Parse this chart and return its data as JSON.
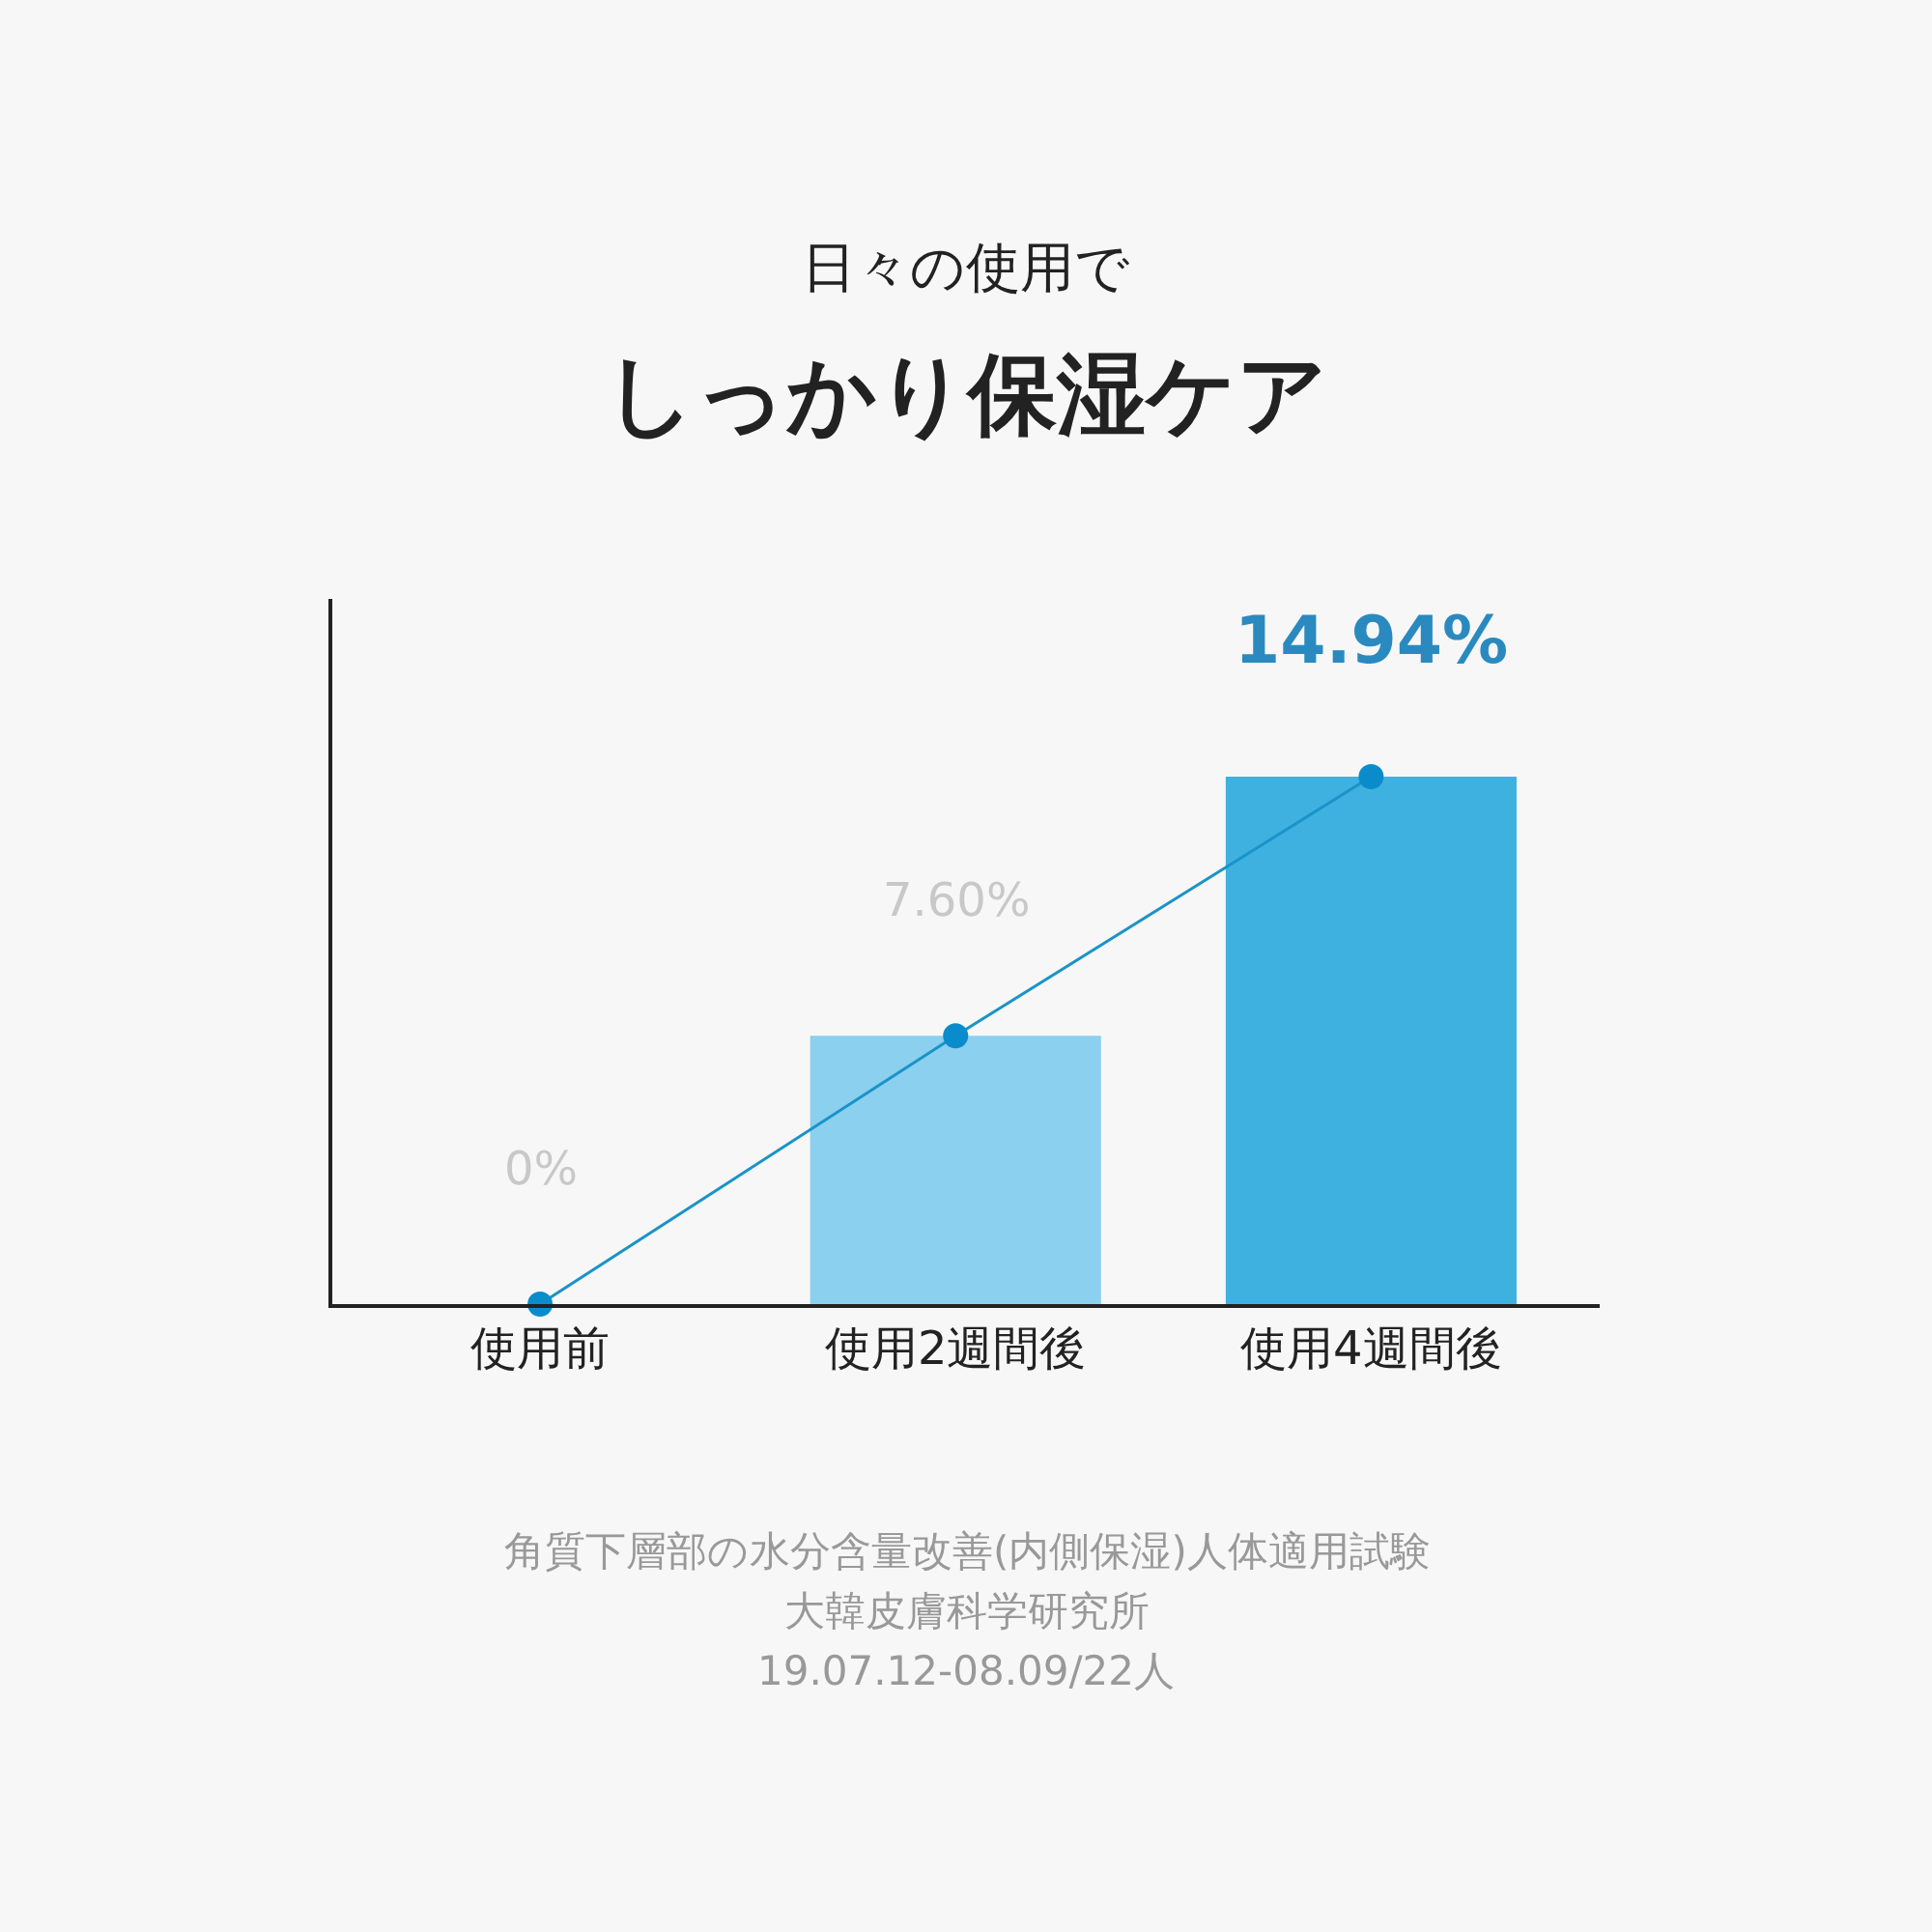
{
  "chart_data": {
    "type": "bar",
    "title": "しっかり保湿ケア",
    "subtitle": "日々の使用で",
    "categories": [
      "使用前",
      "使用2週間後",
      "使用4週間後"
    ],
    "series": [
      {
        "colors": [
          "#c3e7f8",
          "#8bd0ee",
          "#3eb1e0"
        ],
        "values": [
          0,
          7.6,
          14.94
        ],
        "value_labels": [
          "0%",
          "7.60%",
          "14.94%"
        ]
      },
      {
        "type": "line",
        "color": "#1a93c8",
        "values": [
          0,
          7.6,
          14.94
        ],
        "marker": "circle"
      }
    ],
    "annotations": [
      "角質下層部の水分含量改善(内側保湿)人体適用試験",
      "大韓皮膚科学研究所",
      "19.07.12-08.09/22人"
    ],
    "grid": false
  }
}
